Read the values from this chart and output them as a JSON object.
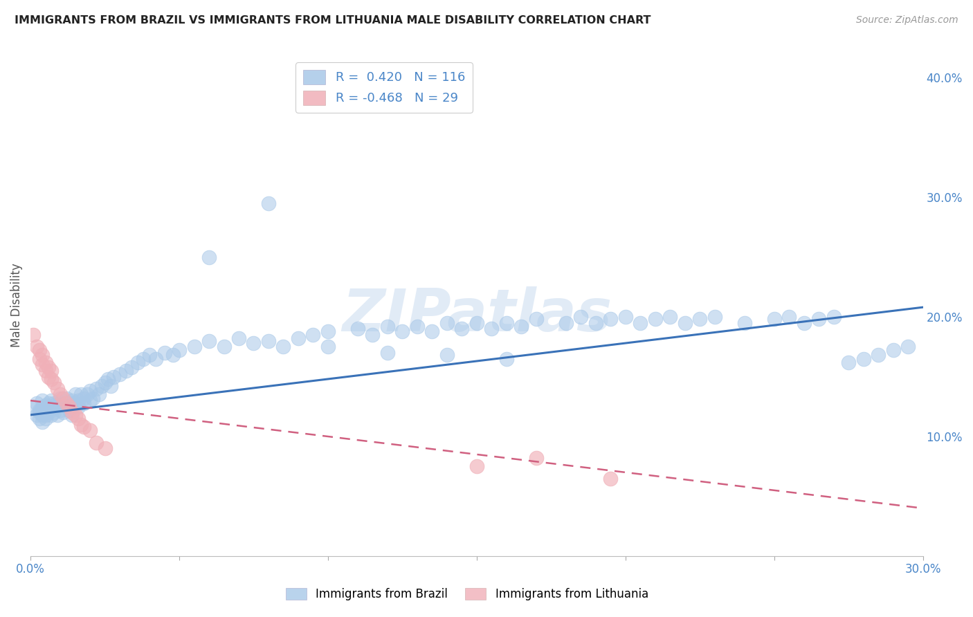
{
  "title": "IMMIGRANTS FROM BRAZIL VS IMMIGRANTS FROM LITHUANIA MALE DISABILITY CORRELATION CHART",
  "source": "Source: ZipAtlas.com",
  "ylabel_label": "Male Disability",
  "xlim": [
    0.0,
    0.3
  ],
  "ylim": [
    0.0,
    0.42
  ],
  "xticks": [
    0.0,
    0.05,
    0.1,
    0.15,
    0.2,
    0.25,
    0.3
  ],
  "xtick_labels": [
    "0.0%",
    "",
    "",
    "",
    "",
    "",
    "30.0%"
  ],
  "yticks_right": [
    0.1,
    0.2,
    0.3,
    0.4
  ],
  "ytick_labels_right": [
    "10.0%",
    "20.0%",
    "30.0%",
    "40.0%"
  ],
  "brazil_color": "#a8c8e8",
  "brazil_line_color": "#3a72b8",
  "lithuania_color": "#f0b0b8",
  "lithuania_line_color": "#d06080",
  "brazil_R": 0.42,
  "brazil_N": 116,
  "lithuania_R": -0.468,
  "lithuania_N": 29,
  "watermark_text": "ZIPatlas",
  "brazil_trend_x0": 0.0,
  "brazil_trend_y0": 0.118,
  "brazil_trend_x1": 0.3,
  "brazil_trend_y1": 0.208,
  "lithuania_trend_x0": 0.0,
  "lithuania_trend_y0": 0.13,
  "lithuania_trend_x1": 0.3,
  "lithuania_trend_y1": 0.04,
  "brazil_scatter_x": [
    0.001,
    0.002,
    0.002,
    0.003,
    0.003,
    0.003,
    0.004,
    0.004,
    0.004,
    0.004,
    0.005,
    0.005,
    0.005,
    0.005,
    0.006,
    0.006,
    0.006,
    0.006,
    0.007,
    0.007,
    0.007,
    0.008,
    0.008,
    0.008,
    0.009,
    0.009,
    0.01,
    0.01,
    0.01,
    0.011,
    0.011,
    0.012,
    0.012,
    0.013,
    0.013,
    0.014,
    0.014,
    0.015,
    0.015,
    0.016,
    0.016,
    0.017,
    0.018,
    0.018,
    0.019,
    0.02,
    0.02,
    0.021,
    0.022,
    0.023,
    0.024,
    0.025,
    0.026,
    0.027,
    0.028,
    0.03,
    0.032,
    0.034,
    0.036,
    0.038,
    0.04,
    0.042,
    0.045,
    0.048,
    0.05,
    0.055,
    0.06,
    0.065,
    0.07,
    0.075,
    0.08,
    0.085,
    0.09,
    0.095,
    0.1,
    0.11,
    0.115,
    0.12,
    0.125,
    0.13,
    0.135,
    0.14,
    0.145,
    0.15,
    0.155,
    0.16,
    0.165,
    0.17,
    0.18,
    0.185,
    0.19,
    0.195,
    0.2,
    0.205,
    0.21,
    0.215,
    0.22,
    0.225,
    0.23,
    0.24,
    0.25,
    0.255,
    0.26,
    0.265,
    0.27,
    0.275,
    0.28,
    0.285,
    0.29,
    0.295,
    0.06,
    0.08,
    0.1,
    0.12,
    0.14,
    0.16
  ],
  "brazil_scatter_y": [
    0.125,
    0.118,
    0.128,
    0.12,
    0.115,
    0.122,
    0.118,
    0.112,
    0.124,
    0.13,
    0.115,
    0.12,
    0.126,
    0.118,
    0.12,
    0.125,
    0.128,
    0.122,
    0.118,
    0.124,
    0.13,
    0.126,
    0.12,
    0.128,
    0.125,
    0.118,
    0.122,
    0.128,
    0.132,
    0.12,
    0.128,
    0.125,
    0.132,
    0.128,
    0.122,
    0.13,
    0.118,
    0.128,
    0.135,
    0.125,
    0.13,
    0.135,
    0.132,
    0.128,
    0.135,
    0.13,
    0.138,
    0.132,
    0.14,
    0.135,
    0.142,
    0.145,
    0.148,
    0.142,
    0.15,
    0.152,
    0.155,
    0.158,
    0.162,
    0.165,
    0.168,
    0.165,
    0.17,
    0.168,
    0.172,
    0.175,
    0.18,
    0.175,
    0.182,
    0.178,
    0.18,
    0.175,
    0.182,
    0.185,
    0.188,
    0.19,
    0.185,
    0.192,
    0.188,
    0.192,
    0.188,
    0.195,
    0.19,
    0.195,
    0.19,
    0.195,
    0.192,
    0.198,
    0.195,
    0.2,
    0.195,
    0.198,
    0.2,
    0.195,
    0.198,
    0.2,
    0.195,
    0.198,
    0.2,
    0.195,
    0.198,
    0.2,
    0.195,
    0.198,
    0.2,
    0.162,
    0.165,
    0.168,
    0.172,
    0.175,
    0.25,
    0.295,
    0.175,
    0.17,
    0.168,
    0.165
  ],
  "lithuania_scatter_x": [
    0.001,
    0.002,
    0.003,
    0.003,
    0.004,
    0.004,
    0.005,
    0.005,
    0.006,
    0.006,
    0.007,
    0.007,
    0.008,
    0.009,
    0.01,
    0.011,
    0.012,
    0.013,
    0.014,
    0.015,
    0.016,
    0.017,
    0.018,
    0.02,
    0.022,
    0.025,
    0.15,
    0.17,
    0.195
  ],
  "lithuania_scatter_y": [
    0.185,
    0.175,
    0.165,
    0.172,
    0.16,
    0.168,
    0.155,
    0.162,
    0.15,
    0.158,
    0.148,
    0.155,
    0.145,
    0.14,
    0.135,
    0.132,
    0.128,
    0.125,
    0.12,
    0.118,
    0.115,
    0.11,
    0.108,
    0.105,
    0.095,
    0.09,
    0.075,
    0.082,
    0.065
  ],
  "tick_color": "#4a86c8",
  "grid_color": "#dddddd",
  "background_color": "#ffffff"
}
